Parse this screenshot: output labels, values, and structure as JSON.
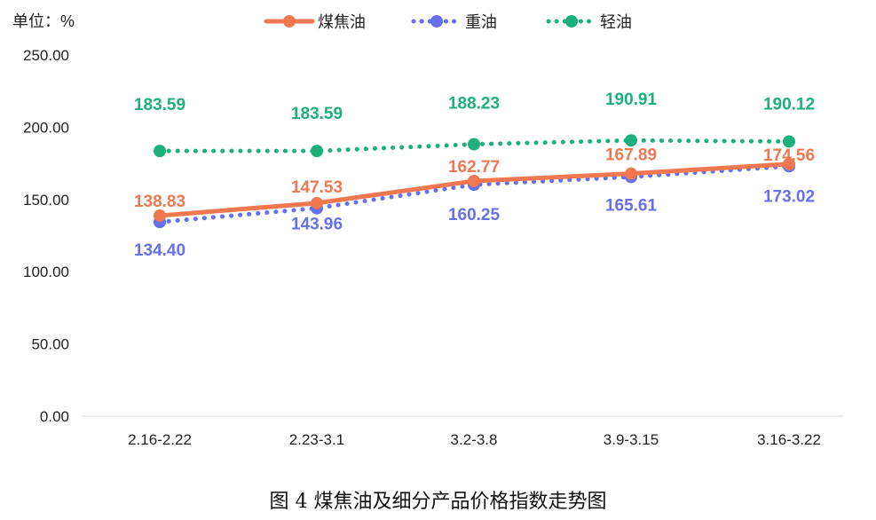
{
  "unit_label": "单位：%",
  "caption": "图 4  煤焦油及细分产品价格指数走势图",
  "chart_data": {
    "type": "line",
    "categories": [
      "2.16-2.22",
      "2.23-3.1",
      "3.2-3.8",
      "3.9-3.15",
      "3.16-3.22"
    ],
    "ylim": [
      0,
      250
    ],
    "yticks": [
      "0.00",
      "50.00",
      "100.00",
      "150.00",
      "200.00",
      "250.00"
    ],
    "legend_position": "top",
    "grid": false,
    "series": [
      {
        "name": "煤焦油",
        "values": [
          138.83,
          147.53,
          162.77,
          167.89,
          174.56
        ],
        "labels": [
          "138.83",
          "147.53",
          "162.77",
          "167.89",
          "174.56"
        ],
        "color": "#F07850",
        "style": "solid"
      },
      {
        "name": "重油",
        "values": [
          134.4,
          143.96,
          160.25,
          165.61,
          173.02
        ],
        "labels": [
          "134.40",
          "143.96",
          "160.25",
          "165.61",
          "173.02"
        ],
        "color": "#6670E8",
        "style": "dotted"
      },
      {
        "name": "轻油",
        "values": [
          183.59,
          183.59,
          188.23,
          190.91,
          190.12
        ],
        "labels": [
          "183.59",
          "183.59",
          "188.23",
          "190.91",
          "190.12"
        ],
        "color": "#1DB07A",
        "style": "dotted"
      }
    ]
  }
}
